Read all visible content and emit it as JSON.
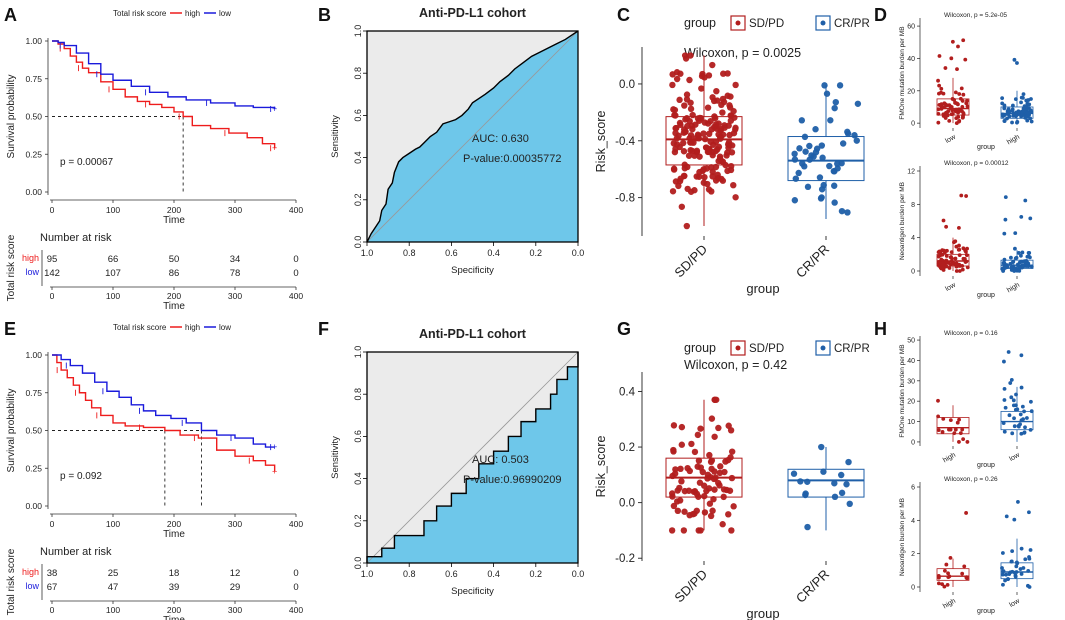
{
  "panel_letters": {
    "A": "A",
    "B": "B",
    "C": "C",
    "D": "D",
    "E": "E",
    "F": "F",
    "G": "G",
    "H": "H"
  },
  "colors": {
    "high": "#ee1c1c",
    "low": "#1a1adb",
    "sd": "#b21e1e",
    "cr": "#1f5fa8",
    "roc": "#6ec7ea",
    "roc_bg": "#ebebeb"
  },
  "chart_data": [
    {
      "id": "A",
      "type": "line",
      "legend": {
        "title": "Total risk score",
        "items": [
          "high",
          "low"
        ]
      },
      "ylabel": "Survival probability",
      "xlabel": "Time",
      "yticks": [
        "0.00",
        "0.25",
        "0.50",
        "0.75",
        "1.00"
      ],
      "xticks": [
        "0",
        "100",
        "200",
        "300",
        "400"
      ],
      "xlim": [
        0,
        400
      ],
      "ylim": [
        0,
        1
      ],
      "pvalue": "p = 0.00067",
      "series": [
        {
          "name": "high",
          "color": "#ee1c1c",
          "points": [
            [
              0,
              1
            ],
            [
              10,
              0.98
            ],
            [
              20,
              0.95
            ],
            [
              30,
              0.9
            ],
            [
              40,
              0.86
            ],
            [
              50,
              0.82
            ],
            [
              60,
              0.79
            ],
            [
              80,
              0.73
            ],
            [
              100,
              0.68
            ],
            [
              120,
              0.63
            ],
            [
              140,
              0.6
            ],
            [
              160,
              0.58
            ],
            [
              180,
              0.56
            ],
            [
              200,
              0.53
            ],
            [
              215,
              0.5
            ],
            [
              230,
              0.44
            ],
            [
              260,
              0.42
            ],
            [
              290,
              0.39
            ],
            [
              320,
              0.36
            ],
            [
              345,
              0.32
            ],
            [
              365,
              0.29
            ]
          ]
        },
        {
          "name": "low",
          "color": "#1a1adb",
          "points": [
            [
              0,
              1
            ],
            [
              10,
              0.99
            ],
            [
              20,
              0.97
            ],
            [
              40,
              0.92
            ],
            [
              60,
              0.85
            ],
            [
              80,
              0.78
            ],
            [
              100,
              0.74
            ],
            [
              130,
              0.7
            ],
            [
              160,
              0.66
            ],
            [
              190,
              0.63
            ],
            [
              220,
              0.61
            ],
            [
              260,
              0.59
            ],
            [
              300,
              0.57
            ],
            [
              330,
              0.56
            ],
            [
              365,
              0.55
            ]
          ]
        }
      ],
      "median_line": {
        "x": 215,
        "y": 0.5
      },
      "risk_table": {
        "title": "Number at risk",
        "ylabel": "Total risk score",
        "xlabel": "Time",
        "groups": [
          "high",
          "low"
        ],
        "rows": [
          [
            "95",
            "66",
            "50",
            "34",
            "0"
          ],
          [
            "142",
            "107",
            "86",
            "78",
            "0"
          ]
        ],
        "xticks": [
          "0",
          "100",
          "200",
          "300",
          "400"
        ]
      }
    },
    {
      "id": "B",
      "type": "line",
      "title": "Anti-PD-L1 cohort",
      "xlabel": "Specificity",
      "ylabel": "Sensitivity",
      "xticks": [
        "1.0",
        "0.8",
        "0.6",
        "0.4",
        "0.2",
        "0.0"
      ],
      "yticks": [
        "0.0",
        "0.2",
        "0.4",
        "0.6",
        "0.8",
        "1.0"
      ],
      "auc": "AUC: 0.630",
      "pvalue": "P-value:0.00035772",
      "fpr_sens": [
        [
          0,
          0
        ],
        [
          0.02,
          0.04
        ],
        [
          0.04,
          0.07
        ],
        [
          0.06,
          0.1
        ],
        [
          0.07,
          0.15
        ],
        [
          0.09,
          0.18
        ],
        [
          0.1,
          0.25
        ],
        [
          0.12,
          0.28
        ],
        [
          0.13,
          0.33
        ],
        [
          0.15,
          0.38
        ],
        [
          0.17,
          0.4
        ],
        [
          0.2,
          0.42
        ],
        [
          0.23,
          0.44
        ],
        [
          0.25,
          0.45
        ],
        [
          0.27,
          0.47
        ],
        [
          0.3,
          0.5
        ],
        [
          0.33,
          0.52
        ],
        [
          0.36,
          0.56
        ],
        [
          0.39,
          0.57
        ],
        [
          0.42,
          0.58
        ],
        [
          0.45,
          0.6
        ],
        [
          0.48,
          0.63
        ],
        [
          0.5,
          0.66
        ],
        [
          0.53,
          0.68
        ],
        [
          0.56,
          0.7
        ],
        [
          0.6,
          0.73
        ],
        [
          0.63,
          0.76
        ],
        [
          0.67,
          0.79
        ],
        [
          0.7,
          0.82
        ],
        [
          0.74,
          0.85
        ],
        [
          0.78,
          0.88
        ],
        [
          0.82,
          0.9
        ],
        [
          0.86,
          0.92
        ],
        [
          0.9,
          0.94
        ],
        [
          0.94,
          0.96
        ],
        [
          0.97,
          0.98
        ],
        [
          1,
          1
        ]
      ]
    },
    {
      "id": "C",
      "type": "scatter",
      "legend": {
        "title": "group",
        "items": [
          "SD/PD",
          "CR/PR"
        ]
      },
      "stat": "Wilcoxon, p = 0.0025",
      "ylabel": "Risk_score",
      "xlabel": "group",
      "categories": [
        "SD/PD",
        "CR/PR"
      ],
      "yticks": [
        "0.0",
        "-0.4",
        "-0.8"
      ],
      "ylim": [
        -1.07,
        0.26
      ],
      "boxes": [
        {
          "name": "SD/PD",
          "q1": -0.57,
          "median": -0.39,
          "q3": -0.23,
          "wmin": -1.0,
          "wmax": 0.2,
          "n": 190
        },
        {
          "name": "CR/PR",
          "q1": -0.68,
          "median": -0.54,
          "q3": -0.37,
          "wmin": -0.95,
          "wmax": -0.01,
          "n": 48
        }
      ]
    },
    {
      "id": "D1",
      "type": "scatter",
      "stat": "Wilcoxon, p = 5.2e-05",
      "ylabel": "FMOne mutation burden per MB",
      "xlabel": "group",
      "categories": [
        "low",
        "high"
      ],
      "yticks": [
        "0",
        "20",
        "40",
        "60"
      ],
      "ylim": [
        -3,
        65
      ],
      "boxes": [
        {
          "name": "low",
          "color": "sd",
          "q1": 5,
          "median": 9,
          "q3": 15,
          "wmin": 0,
          "wmax": 28,
          "n": 80
        },
        {
          "name": "high",
          "color": "cr",
          "q1": 3,
          "median": 6,
          "q3": 10,
          "wmin": 0,
          "wmax": 20,
          "n": 75
        }
      ]
    },
    {
      "id": "D2",
      "type": "scatter",
      "stat": "Wilcoxon, p = 0.00012",
      "ylabel": "Neoantigen burden per MB",
      "xlabel": "group",
      "categories": [
        "low",
        "high"
      ],
      "yticks": [
        "0",
        "4",
        "8",
        "12"
      ],
      "ylim": [
        -0.6,
        12.6
      ],
      "boxes": [
        {
          "name": "low",
          "color": "sd",
          "q1": 0.6,
          "median": 1.2,
          "q3": 2.0,
          "wmin": 0,
          "wmax": 4.0,
          "n": 80
        },
        {
          "name": "high",
          "color": "cr",
          "q1": 0.3,
          "median": 0.7,
          "q3": 1.3,
          "wmin": 0,
          "wmax": 2.5,
          "n": 70
        }
      ]
    },
    {
      "id": "E",
      "type": "line",
      "legend": {
        "title": "Total risk score",
        "items": [
          "high",
          "low"
        ]
      },
      "ylabel": "Survival probability",
      "xlabel": "Time",
      "yticks": [
        "0.00",
        "0.25",
        "0.50",
        "0.75",
        "1.00"
      ],
      "xticks": [
        "0",
        "100",
        "200",
        "300",
        "400"
      ],
      "xlim": [
        0,
        400
      ],
      "ylim": [
        0,
        1
      ],
      "pvalue": "p = 0.092",
      "series": [
        {
          "name": "high",
          "color": "#ee1c1c",
          "points": [
            [
              0,
              1
            ],
            [
              8,
              0.95
            ],
            [
              15,
              0.9
            ],
            [
              25,
              0.85
            ],
            [
              35,
              0.8
            ],
            [
              45,
              0.75
            ],
            [
              55,
              0.7
            ],
            [
              65,
              0.65
            ],
            [
              80,
              0.6
            ],
            [
              100,
              0.55
            ],
            [
              120,
              0.53
            ],
            [
              150,
              0.52
            ],
            [
              185,
              0.5
            ],
            [
              210,
              0.47
            ],
            [
              240,
              0.45
            ],
            [
              270,
              0.37
            ],
            [
              300,
              0.33
            ],
            [
              330,
              0.3
            ],
            [
              350,
              0.27
            ],
            [
              365,
              0.23
            ]
          ]
        },
        {
          "name": "low",
          "color": "#1a1adb",
          "points": [
            [
              0,
              1
            ],
            [
              15,
              0.97
            ],
            [
              30,
              0.93
            ],
            [
              50,
              0.88
            ],
            [
              70,
              0.82
            ],
            [
              90,
              0.76
            ],
            [
              110,
              0.72
            ],
            [
              130,
              0.67
            ],
            [
              150,
              0.63
            ],
            [
              170,
              0.6
            ],
            [
              195,
              0.58
            ],
            [
              220,
              0.55
            ],
            [
              245,
              0.5
            ],
            [
              270,
              0.47
            ],
            [
              300,
              0.45
            ],
            [
              330,
              0.41
            ],
            [
              350,
              0.39
            ],
            [
              365,
              0.39
            ]
          ]
        }
      ],
      "median_lines": [
        {
          "x": 185,
          "y": 0.5
        },
        {
          "x": 245,
          "y": 0.5
        }
      ],
      "risk_table": {
        "title": "Number at risk",
        "ylabel": "Total risk score",
        "xlabel": "Time",
        "groups": [
          "high",
          "low"
        ],
        "rows": [
          [
            "38",
            "25",
            "18",
            "12",
            "0"
          ],
          [
            "67",
            "47",
            "39",
            "29",
            "0"
          ]
        ],
        "xticks": [
          "0",
          "100",
          "200",
          "300",
          "400"
        ]
      }
    },
    {
      "id": "F",
      "type": "line",
      "title": "Anti-PD-L1 cohort",
      "xlabel": "Specificity",
      "ylabel": "Sensitivity",
      "xticks": [
        "1.0",
        "0.8",
        "0.6",
        "0.4",
        "0.2",
        "0.0"
      ],
      "yticks": [
        "0.0",
        "0.2",
        "0.4",
        "0.6",
        "0.8",
        "1.0"
      ],
      "auc": "AUC: 0.503",
      "pvalue": "P-value:0.96990209",
      "fpr_sens": [
        [
          0,
          0
        ],
        [
          0,
          0.03
        ],
        [
          0.07,
          0.03
        ],
        [
          0.07,
          0.07
        ],
        [
          0.13,
          0.07
        ],
        [
          0.13,
          0.13
        ],
        [
          0.27,
          0.13
        ],
        [
          0.27,
          0.2
        ],
        [
          0.33,
          0.2
        ],
        [
          0.33,
          0.27
        ],
        [
          0.4,
          0.27
        ],
        [
          0.4,
          0.33
        ],
        [
          0.47,
          0.33
        ],
        [
          0.47,
          0.4
        ],
        [
          0.53,
          0.4
        ],
        [
          0.53,
          0.47
        ],
        [
          0.6,
          0.47
        ],
        [
          0.6,
          0.53
        ],
        [
          0.67,
          0.53
        ],
        [
          0.67,
          0.6
        ],
        [
          0.73,
          0.6
        ],
        [
          0.73,
          0.67
        ],
        [
          0.8,
          0.67
        ],
        [
          0.8,
          0.73
        ],
        [
          0.87,
          0.73
        ],
        [
          0.87,
          0.8
        ],
        [
          0.9,
          0.8
        ],
        [
          0.9,
          0.87
        ],
        [
          0.95,
          0.87
        ],
        [
          0.95,
          0.93
        ],
        [
          1,
          0.93
        ],
        [
          1,
          1
        ]
      ]
    },
    {
      "id": "G",
      "type": "scatter",
      "legend": {
        "title": "group",
        "items": [
          "SD/PD",
          "CR/PR"
        ]
      },
      "stat": "Wilcoxon, p = 0.42",
      "ylabel": "Risk_score",
      "xlabel": "group",
      "categories": [
        "SD/PD",
        "CR/PR"
      ],
      "yticks": [
        "0.4",
        "0.2",
        "0.0",
        "-0.2"
      ],
      "ylim": [
        -0.21,
        0.47
      ],
      "boxes": [
        {
          "name": "SD/PD",
          "q1": 0.02,
          "median": 0.09,
          "q3": 0.16,
          "wmin": -0.1,
          "wmax": 0.37,
          "n": 90
        },
        {
          "name": "CR/PR",
          "q1": 0.02,
          "median": 0.08,
          "q3": 0.12,
          "wmin": -0.1,
          "wmax": 0.2,
          "n": 15
        }
      ]
    },
    {
      "id": "H1",
      "type": "scatter",
      "stat": "Wilcoxon, p = 0.16",
      "ylabel": "FMOne mutation burden per MB",
      "xlabel": "group",
      "categories": [
        "high",
        "low"
      ],
      "yticks": [
        "0",
        "10",
        "20",
        "30",
        "40",
        "50"
      ],
      "ylim": [
        -2,
        52
      ],
      "boxes": [
        {
          "name": "high",
          "color": "sd",
          "q1": 4,
          "median": 7,
          "q3": 12,
          "wmin": 0,
          "wmax": 18,
          "n": 18
        },
        {
          "name": "low",
          "color": "cr",
          "q1": 6,
          "median": 10,
          "q3": 15,
          "wmin": 0,
          "wmax": 27,
          "n": 38
        }
      ]
    },
    {
      "id": "H2",
      "type": "scatter",
      "stat": "Wilcoxon, p = 0.26",
      "ylabel": "Neoantigen burden per MB",
      "xlabel": "group",
      "categories": [
        "high",
        "low"
      ],
      "yticks": [
        "0",
        "2",
        "4",
        "6"
      ],
      "ylim": [
        -0.3,
        6.3
      ],
      "boxes": [
        {
          "name": "high",
          "color": "sd",
          "q1": 0.4,
          "median": 0.65,
          "q3": 1.1,
          "wmin": 0,
          "wmax": 1.7,
          "n": 18
        },
        {
          "name": "low",
          "color": "cr",
          "q1": 0.5,
          "median": 0.9,
          "q3": 1.45,
          "wmin": 0,
          "wmax": 2.9,
          "n": 38
        }
      ]
    }
  ]
}
